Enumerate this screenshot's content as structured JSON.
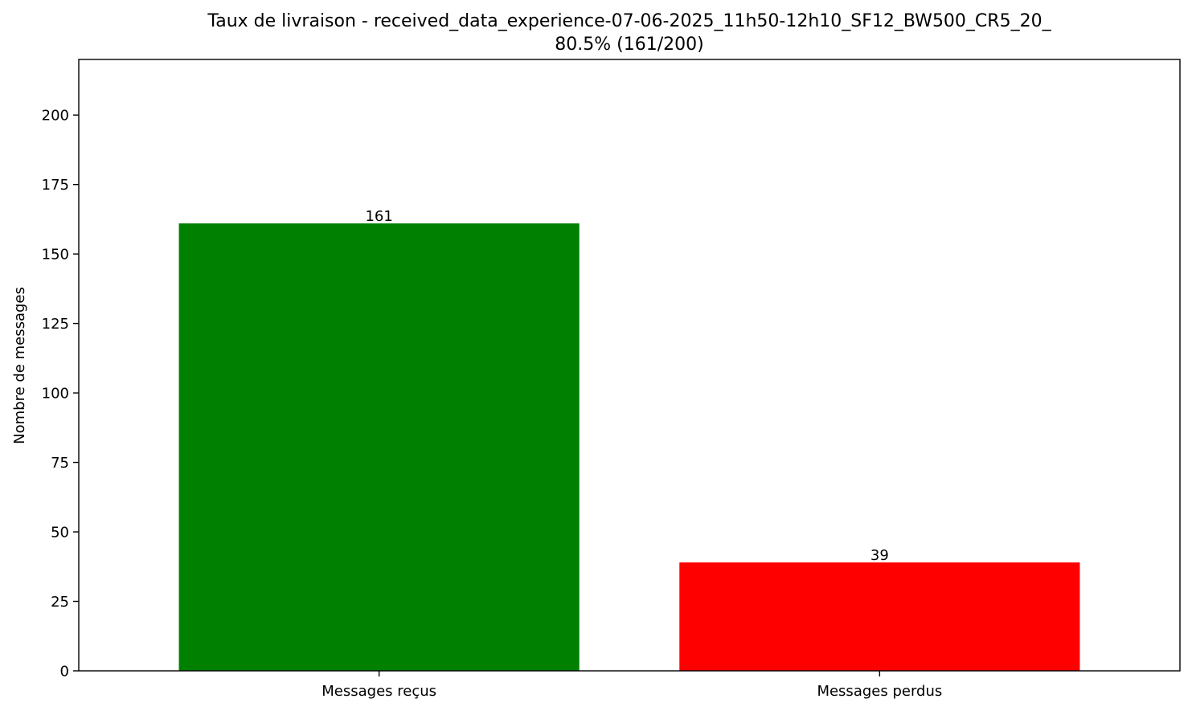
{
  "chart_data": {
    "type": "bar",
    "title": "Taux de livraison - received_data_experience-07-06-2025_11h50-12h10_SF12_BW500_CR5_20_",
    "subtitle": "80.5% (161/200)",
    "categories": [
      "Messages reçus",
      "Messages perdus"
    ],
    "values": [
      161,
      39
    ],
    "value_labels": [
      "161",
      "39"
    ],
    "colors": [
      "#008000",
      "#ff0000"
    ],
    "xlabel": "",
    "ylabel": "Nombre de messages",
    "ylim": [
      0,
      220
    ],
    "yticks": [
      0,
      25,
      50,
      75,
      100,
      125,
      150,
      175,
      200
    ],
    "ytick_labels": [
      "0",
      "25",
      "50",
      "75",
      "100",
      "125",
      "150",
      "175",
      "200"
    ],
    "grid": false,
    "legend": "none"
  }
}
